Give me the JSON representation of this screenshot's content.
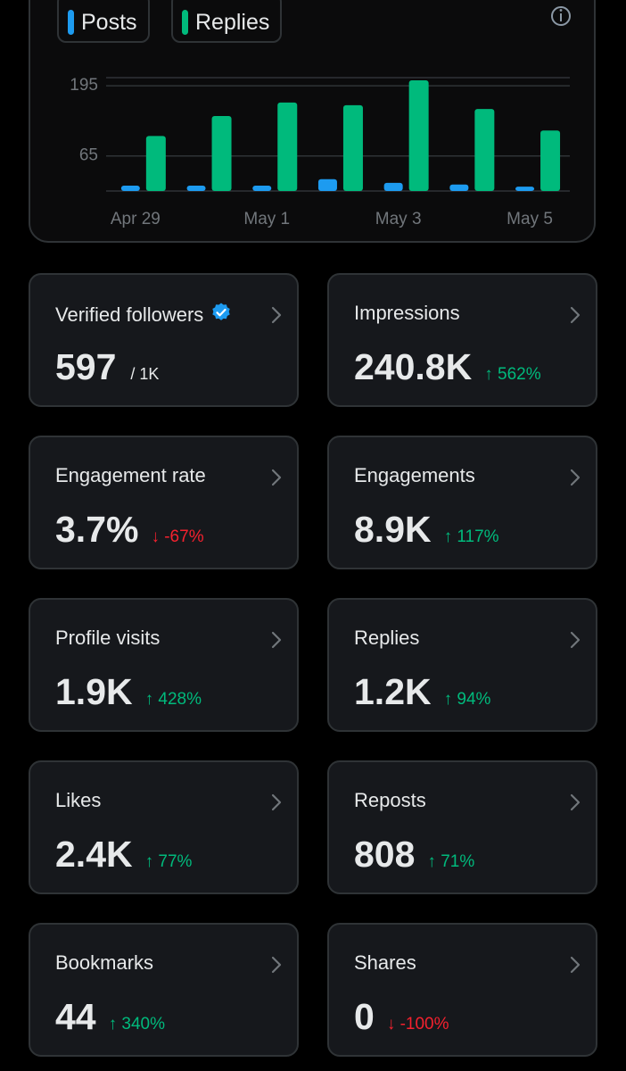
{
  "chart_data": {
    "type": "bar",
    "categories": [
      "Apr 29",
      null,
      "May 1",
      null,
      "May 3",
      null,
      "May 5"
    ],
    "series": [
      {
        "name": "Posts",
        "color": "#1d9bf0",
        "values": [
          10,
          10,
          10,
          22,
          15,
          12,
          8
        ]
      },
      {
        "name": "Replies",
        "color": "#00ba7c",
        "values": [
          102,
          139,
          164,
          159,
          205,
          152,
          112
        ]
      }
    ],
    "ylim": [
      0,
      210
    ],
    "yticks": [
      65,
      195
    ],
    "grid": true
  },
  "metrics": [
    {
      "label": "Verified followers",
      "value": "597",
      "limit": "/ 1K",
      "verified": true
    },
    {
      "label": "Impressions",
      "value": "240.8K",
      "change": "↑ 562%",
      "trend": "up"
    },
    {
      "label": "Engagement rate",
      "value": "3.7%",
      "change": "↓ -67%",
      "trend": "down"
    },
    {
      "label": "Engagements",
      "value": "8.9K",
      "change": "↑ 117%",
      "trend": "up"
    },
    {
      "label": "Profile visits",
      "value": "1.9K",
      "change": "↑ 428%",
      "trend": "up"
    },
    {
      "label": "Replies",
      "value": "1.2K",
      "change": "↑ 94%",
      "trend": "up"
    },
    {
      "label": "Likes",
      "value": "2.4K",
      "change": "↑ 77%",
      "trend": "up"
    },
    {
      "label": "Reposts",
      "value": "808",
      "change": "↑ 71%",
      "trend": "up"
    },
    {
      "label": "Bookmarks",
      "value": "44",
      "change": "↑ 340%",
      "trend": "up"
    },
    {
      "label": "Shares",
      "value": "0",
      "change": "↓ -100%",
      "trend": "down"
    }
  ]
}
